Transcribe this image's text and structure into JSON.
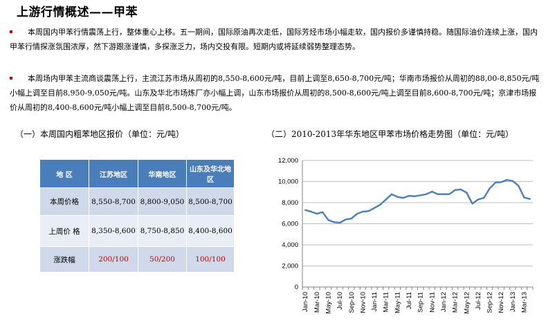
{
  "header": {
    "title": "上游行情概述——甲苯"
  },
  "paragraphs": [
    "本周国内甲苯行情震荡上行，整体重心上移。五一期间，国际原油再次走低，国际芳烃市场小幅走软，国内报价多谨慎持稳。随国际油价连续上涨，国内甲苯行情探涨氛围浓厚，然下游跟涨谨慎，多探涨乏力，场内交投有限。短期内或将延续弱势整理态势。",
    "本周场内甲苯主流商谈震荡上行，主流江苏市场从周初的8,550-8,600元/吨，目前上调至8,650-8,700元/吨；华南市场报价从周初的88,00-8,850元/吨小幅上调至目前8,950-9,050元/吨。山东及华北市场炼厂亦小幅上调，山东市场报价从周初的8,500-8,600元/吨上调至目前8,600-8,700元/吨；京津市场报价从周初的8,400-8,600元/吨小幅上调至目前8,500-8,700元/吨。"
  ],
  "table_section": {
    "subtitle": "（一）本周国内粗苯地区报价（单位：元/吨）",
    "headers": [
      "地  区",
      "江苏地区",
      "华南地区",
      "山东及华北地区"
    ],
    "rows": [
      [
        "本周价格",
        "8,550-8,700",
        "8,800-9,050",
        "8,500-8,700"
      ],
      [
        "上周价 格",
        "8,350-8,600",
        "8,750-8,850",
        "8,400-8,600"
      ],
      [
        "涨跌幅",
        "200/100",
        "50/200",
        "100/100"
      ]
    ]
  },
  "chart_section": {
    "subtitle": "（二）2010-2013年华东地区甲苯市场价格走势图（单位：元/吨）"
  },
  "chart_data": {
    "type": "line",
    "title": "",
    "xlabel": "",
    "ylabel": "",
    "ylim": [
      0,
      12000
    ],
    "yticks": [
      "0",
      "2,000",
      "4,000",
      "6,000",
      "8,000",
      "10,000",
      "12,000"
    ],
    "x_tick_labels": [
      "Jan-10",
      "Mar-10",
      "May-10",
      "Jul-10",
      "Sep-10",
      "Nov-10",
      "Jan-11",
      "Mar-11",
      "May-11",
      "Jul-11",
      "Sep-11",
      "Nov-11",
      "Jan-12",
      "Mar-12",
      "May-12",
      "Jul-12",
      "Sep-12",
      "Nov-12",
      "Jan-13",
      "Mar-13"
    ],
    "line_color": "#4f81bd",
    "grid": "horizontal",
    "series": [
      {
        "name": "",
        "x": [
          "Jan-10",
          "Feb-10",
          "Mar-10",
          "Apr-10",
          "May-10",
          "Jun-10",
          "Jul-10",
          "Aug-10",
          "Sep-10",
          "Oct-10",
          "Nov-10",
          "Dec-10",
          "Jan-11",
          "Feb-11",
          "Mar-11",
          "Apr-11",
          "May-11",
          "Jun-11",
          "Jul-11",
          "Aug-11",
          "Sep-11",
          "Oct-11",
          "Nov-11",
          "Dec-11",
          "Jan-12",
          "Feb-12",
          "Mar-12",
          "Apr-12",
          "May-12",
          "Jun-12",
          "Jul-12",
          "Aug-12",
          "Sep-12",
          "Oct-12",
          "Nov-12",
          "Dec-12",
          "Jan-13",
          "Feb-13",
          "Mar-13",
          "Apr-13"
        ],
        "values": [
          7300,
          7150,
          6950,
          7100,
          6350,
          6150,
          6100,
          6400,
          6500,
          6950,
          7150,
          7200,
          7500,
          7800,
          8300,
          8800,
          8550,
          8450,
          8650,
          8600,
          8700,
          8800,
          9050,
          8800,
          8800,
          8800,
          9200,
          9250,
          8950,
          7900,
          8300,
          8450,
          9350,
          9900,
          9950,
          10150,
          10050,
          9600,
          8500,
          8350
        ]
      }
    ]
  }
}
